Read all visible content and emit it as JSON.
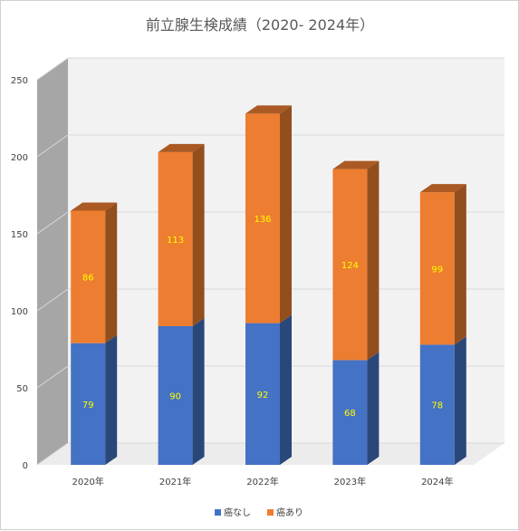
{
  "chart_data": {
    "type": "bar",
    "stacked": true,
    "three_d": true,
    "title": "前立腺生検成績（2020- 2024年）",
    "categories": [
      "2020年",
      "2021年",
      "2022年",
      "2023年",
      "2024年"
    ],
    "series": [
      {
        "name": "癌なし",
        "values": [
          79,
          90,
          92,
          68,
          78
        ],
        "color": "#4472c4"
      },
      {
        "name": "癌あり",
        "values": [
          86,
          113,
          136,
          124,
          99
        ],
        "color": "#ed7d31"
      }
    ],
    "ylim": [
      0,
      250
    ],
    "yticks": [
      0,
      50,
      100,
      150,
      200,
      250
    ],
    "grid": true,
    "legend_position": "bottom",
    "data_label_color": "#ffff00",
    "wall_color": "#f2f2f2",
    "side_wall_color": "#a6a6a6"
  }
}
